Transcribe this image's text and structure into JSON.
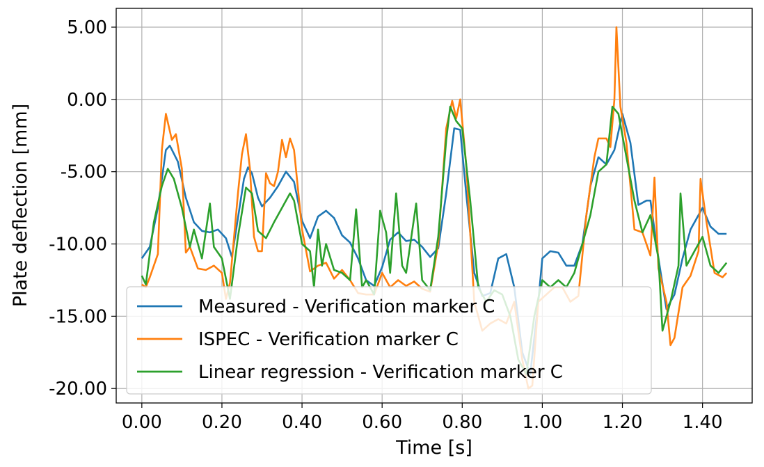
{
  "chart_data": {
    "type": "line",
    "xlabel": "Time [s]",
    "ylabel": "Plate deflection [mm]",
    "xlim": [
      -0.064,
      1.524
    ],
    "ylim": [
      -21.0,
      6.3
    ],
    "xticks": [
      0.0,
      0.2,
      0.4,
      0.6,
      0.8,
      1.0,
      1.2,
      1.4
    ],
    "xtick_labels": [
      "0.00",
      "0.20",
      "0.40",
      "0.60",
      "0.80",
      "1.00",
      "1.20",
      "1.40"
    ],
    "yticks": [
      5,
      0,
      -5,
      -10,
      -15,
      -20
    ],
    "ytick_labels": [
      "5.00",
      "0.00",
      "-5.00",
      "-10.00",
      "-15.00",
      "-20.00"
    ],
    "grid": true,
    "legend_position": "lower-left",
    "series": [
      {
        "name": "Measured - Verification marker C",
        "color": "#1f77b4",
        "points": [
          [
            0.0,
            -11.0
          ],
          [
            0.02,
            -10.2
          ],
          [
            0.04,
            -7.5
          ],
          [
            0.06,
            -3.5
          ],
          [
            0.07,
            -3.2
          ],
          [
            0.09,
            -4.3
          ],
          [
            0.11,
            -6.8
          ],
          [
            0.13,
            -8.5
          ],
          [
            0.15,
            -9.1
          ],
          [
            0.17,
            -9.2
          ],
          [
            0.19,
            -9.0
          ],
          [
            0.21,
            -9.6
          ],
          [
            0.225,
            -10.9
          ],
          [
            0.24,
            -8.2
          ],
          [
            0.255,
            -5.5
          ],
          [
            0.265,
            -4.7
          ],
          [
            0.275,
            -5.1
          ],
          [
            0.29,
            -6.8
          ],
          [
            0.3,
            -7.4
          ],
          [
            0.32,
            -6.8
          ],
          [
            0.34,
            -6.0
          ],
          [
            0.36,
            -5.0
          ],
          [
            0.38,
            -5.7
          ],
          [
            0.4,
            -8.4
          ],
          [
            0.42,
            -9.6
          ],
          [
            0.44,
            -8.1
          ],
          [
            0.46,
            -7.7
          ],
          [
            0.48,
            -8.2
          ],
          [
            0.5,
            -9.4
          ],
          [
            0.52,
            -9.9
          ],
          [
            0.54,
            -11.0
          ],
          [
            0.56,
            -12.5
          ],
          [
            0.58,
            -12.9
          ],
          [
            0.6,
            -11.6
          ],
          [
            0.62,
            -9.7
          ],
          [
            0.64,
            -9.2
          ],
          [
            0.66,
            -9.8
          ],
          [
            0.68,
            -9.7
          ],
          [
            0.7,
            -10.2
          ],
          [
            0.72,
            -10.9
          ],
          [
            0.74,
            -10.3
          ],
          [
            0.76,
            -6.5
          ],
          [
            0.78,
            -2.0
          ],
          [
            0.795,
            -2.1
          ],
          [
            0.81,
            -6.5
          ],
          [
            0.83,
            -12.0
          ],
          [
            0.85,
            -13.6
          ],
          [
            0.87,
            -13.4
          ],
          [
            0.89,
            -11.0
          ],
          [
            0.91,
            -10.7
          ],
          [
            0.93,
            -13.0
          ],
          [
            0.95,
            -17.5
          ],
          [
            0.97,
            -19.0
          ],
          [
            0.99,
            -14.0
          ],
          [
            1.0,
            -11.0
          ],
          [
            1.02,
            -10.5
          ],
          [
            1.04,
            -10.6
          ],
          [
            1.06,
            -11.5
          ],
          [
            1.08,
            -11.5
          ],
          [
            1.1,
            -10.0
          ],
          [
            1.12,
            -6.0
          ],
          [
            1.14,
            -4.0
          ],
          [
            1.16,
            -4.5
          ],
          [
            1.18,
            -3.5
          ],
          [
            1.2,
            -1.0
          ],
          [
            1.22,
            -3.0
          ],
          [
            1.24,
            -7.3
          ],
          [
            1.26,
            -7.0
          ],
          [
            1.27,
            -7.0
          ],
          [
            1.29,
            -11.0
          ],
          [
            1.31,
            -14.5
          ],
          [
            1.33,
            -13.5
          ],
          [
            1.35,
            -11.0
          ],
          [
            1.37,
            -9.0
          ],
          [
            1.39,
            -8.0
          ],
          [
            1.4,
            -7.5
          ],
          [
            1.42,
            -8.8
          ],
          [
            1.44,
            -9.3
          ],
          [
            1.46,
            -9.3
          ]
        ]
      },
      {
        "name": "ISPEC - Verification marker C",
        "color": "#ff7f0e",
        "points": [
          [
            0.0,
            -12.8
          ],
          [
            0.01,
            -13.0
          ],
          [
            0.02,
            -12.3
          ],
          [
            0.04,
            -10.7
          ],
          [
            0.05,
            -3.5
          ],
          [
            0.06,
            -1.0
          ],
          [
            0.075,
            -2.8
          ],
          [
            0.085,
            -2.4
          ],
          [
            0.1,
            -4.8
          ],
          [
            0.11,
            -10.6
          ],
          [
            0.12,
            -10.2
          ],
          [
            0.14,
            -11.7
          ],
          [
            0.16,
            -11.8
          ],
          [
            0.18,
            -11.5
          ],
          [
            0.2,
            -12.0
          ],
          [
            0.21,
            -13.8
          ],
          [
            0.22,
            -12.7
          ],
          [
            0.24,
            -6.5
          ],
          [
            0.25,
            -3.8
          ],
          [
            0.26,
            -2.4
          ],
          [
            0.27,
            -4.8
          ],
          [
            0.28,
            -9.5
          ],
          [
            0.29,
            -10.5
          ],
          [
            0.3,
            -10.5
          ],
          [
            0.31,
            -5.1
          ],
          [
            0.32,
            -5.8
          ],
          [
            0.33,
            -6.0
          ],
          [
            0.34,
            -5.0
          ],
          [
            0.35,
            -2.8
          ],
          [
            0.36,
            -4.0
          ],
          [
            0.37,
            -2.7
          ],
          [
            0.38,
            -3.5
          ],
          [
            0.4,
            -9.0
          ],
          [
            0.42,
            -11.9
          ],
          [
            0.44,
            -11.5
          ],
          [
            0.46,
            -11.3
          ],
          [
            0.48,
            -12.4
          ],
          [
            0.5,
            -11.8
          ],
          [
            0.52,
            -12.5
          ],
          [
            0.54,
            -13.4
          ],
          [
            0.56,
            -13.5
          ],
          [
            0.58,
            -13.5
          ],
          [
            0.6,
            -12.0
          ],
          [
            0.62,
            -13.0
          ],
          [
            0.64,
            -12.5
          ],
          [
            0.66,
            -12.9
          ],
          [
            0.68,
            -12.6
          ],
          [
            0.7,
            -13.1
          ],
          [
            0.72,
            -13.3
          ],
          [
            0.74,
            -10.0
          ],
          [
            0.76,
            -2.0
          ],
          [
            0.775,
            -0.1
          ],
          [
            0.785,
            -1.3
          ],
          [
            0.795,
            0.0
          ],
          [
            0.81,
            -4.5
          ],
          [
            0.83,
            -14.0
          ],
          [
            0.85,
            -16.0
          ],
          [
            0.87,
            -15.5
          ],
          [
            0.89,
            -15.2
          ],
          [
            0.91,
            -15.5
          ],
          [
            0.93,
            -14.0
          ],
          [
            0.95,
            -18.0
          ],
          [
            0.965,
            -20.0
          ],
          [
            0.975,
            -19.8
          ],
          [
            0.99,
            -14.0
          ],
          [
            1.01,
            -13.5
          ],
          [
            1.03,
            -13.0
          ],
          [
            1.05,
            -13.0
          ],
          [
            1.07,
            -14.0
          ],
          [
            1.09,
            -13.6
          ],
          [
            1.11,
            -8.0
          ],
          [
            1.13,
            -4.0
          ],
          [
            1.14,
            -2.7
          ],
          [
            1.16,
            -2.7
          ],
          [
            1.17,
            -3.3
          ],
          [
            1.18,
            0.0
          ],
          [
            1.185,
            5.0
          ],
          [
            1.195,
            -0.5
          ],
          [
            1.21,
            -3.0
          ],
          [
            1.23,
            -9.0
          ],
          [
            1.25,
            -9.2
          ],
          [
            1.27,
            -10.8
          ],
          [
            1.28,
            -5.4
          ],
          [
            1.29,
            -11.7
          ],
          [
            1.31,
            -14.0
          ],
          [
            1.32,
            -17.0
          ],
          [
            1.33,
            -16.5
          ],
          [
            1.35,
            -13.0
          ],
          [
            1.37,
            -12.2
          ],
          [
            1.39,
            -10.5
          ],
          [
            1.395,
            -5.5
          ],
          [
            1.41,
            -8.5
          ],
          [
            1.43,
            -12.0
          ],
          [
            1.45,
            -12.3
          ],
          [
            1.46,
            -12.0
          ]
        ]
      },
      {
        "name": "Linear regression - Verification marker C",
        "color": "#2ca02c",
        "points": [
          [
            0.0,
            -12.2
          ],
          [
            0.01,
            -12.8
          ],
          [
            0.03,
            -8.5
          ],
          [
            0.05,
            -6.0
          ],
          [
            0.065,
            -4.8
          ],
          [
            0.08,
            -5.5
          ],
          [
            0.1,
            -7.5
          ],
          [
            0.12,
            -10.2
          ],
          [
            0.13,
            -9.0
          ],
          [
            0.15,
            -11.0
          ],
          [
            0.17,
            -7.2
          ],
          [
            0.18,
            -10.2
          ],
          [
            0.2,
            -11.0
          ],
          [
            0.22,
            -13.8
          ],
          [
            0.24,
            -9.5
          ],
          [
            0.26,
            -6.1
          ],
          [
            0.275,
            -6.5
          ],
          [
            0.29,
            -9.1
          ],
          [
            0.31,
            -9.6
          ],
          [
            0.33,
            -8.5
          ],
          [
            0.35,
            -7.5
          ],
          [
            0.37,
            -6.5
          ],
          [
            0.38,
            -7.0
          ],
          [
            0.4,
            -10.0
          ],
          [
            0.42,
            -10.5
          ],
          [
            0.43,
            -13.0
          ],
          [
            0.44,
            -9.0
          ],
          [
            0.45,
            -11.5
          ],
          [
            0.46,
            -10.0
          ],
          [
            0.48,
            -11.8
          ],
          [
            0.5,
            -12.0
          ],
          [
            0.52,
            -12.5
          ],
          [
            0.535,
            -7.6
          ],
          [
            0.55,
            -13.0
          ],
          [
            0.56,
            -12.5
          ],
          [
            0.58,
            -13.5
          ],
          [
            0.595,
            -7.7
          ],
          [
            0.61,
            -9.2
          ],
          [
            0.62,
            -12.0
          ],
          [
            0.635,
            -6.5
          ],
          [
            0.65,
            -11.5
          ],
          [
            0.66,
            -12.0
          ],
          [
            0.685,
            -7.2
          ],
          [
            0.7,
            -12.5
          ],
          [
            0.72,
            -13.2
          ],
          [
            0.74,
            -9.5
          ],
          [
            0.76,
            -2.8
          ],
          [
            0.77,
            -0.5
          ],
          [
            0.785,
            -1.5
          ],
          [
            0.8,
            -2.0
          ],
          [
            0.82,
            -7.0
          ],
          [
            0.84,
            -13.0
          ],
          [
            0.86,
            -14.0
          ],
          [
            0.88,
            -13.2
          ],
          [
            0.9,
            -13.5
          ],
          [
            0.92,
            -15.0
          ],
          [
            0.94,
            -18.0
          ],
          [
            0.96,
            -19.0
          ],
          [
            0.98,
            -15.0
          ],
          [
            1.0,
            -12.5
          ],
          [
            1.02,
            -13.0
          ],
          [
            1.04,
            -12.5
          ],
          [
            1.06,
            -13.0
          ],
          [
            1.08,
            -12.0
          ],
          [
            1.1,
            -10.0
          ],
          [
            1.12,
            -8.0
          ],
          [
            1.14,
            -5.0
          ],
          [
            1.16,
            -4.5
          ],
          [
            1.175,
            -0.5
          ],
          [
            1.19,
            -1.0
          ],
          [
            1.21,
            -4.0
          ],
          [
            1.23,
            -7.0
          ],
          [
            1.25,
            -9.2
          ],
          [
            1.27,
            -8.0
          ],
          [
            1.29,
            -11.0
          ],
          [
            1.3,
            -16.0
          ],
          [
            1.32,
            -14.0
          ],
          [
            1.34,
            -11.5
          ],
          [
            1.345,
            -6.5
          ],
          [
            1.36,
            -11.5
          ],
          [
            1.38,
            -10.5
          ],
          [
            1.4,
            -9.5
          ],
          [
            1.42,
            -11.5
          ],
          [
            1.44,
            -12.0
          ],
          [
            1.46,
            -11.3
          ]
        ]
      }
    ]
  }
}
